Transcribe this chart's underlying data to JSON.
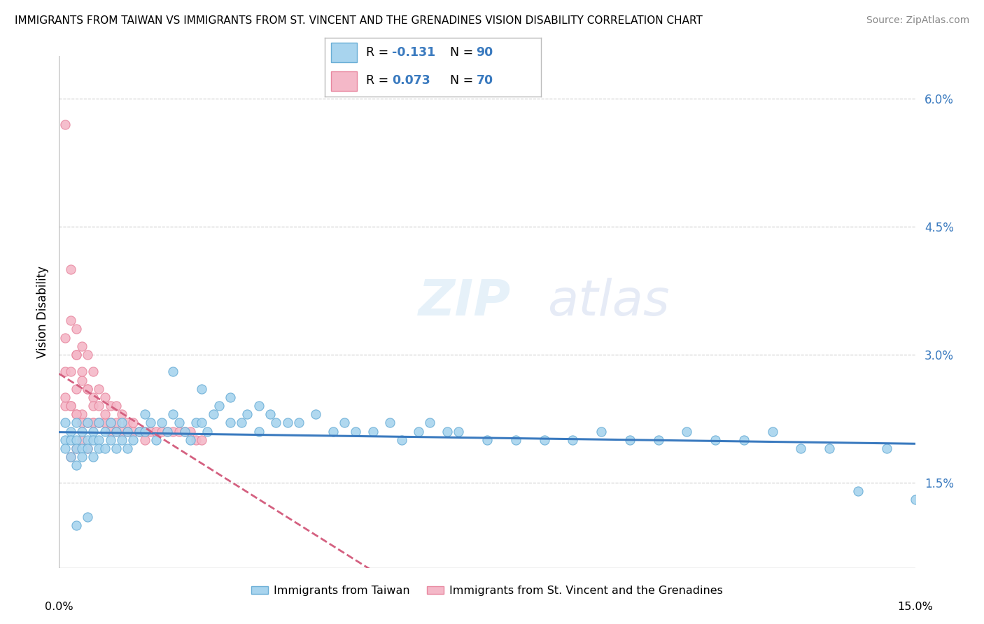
{
  "title": "IMMIGRANTS FROM TAIWAN VS IMMIGRANTS FROM ST. VINCENT AND THE GRENADINES VISION DISABILITY CORRELATION CHART",
  "source": "Source: ZipAtlas.com",
  "ylabel": "Vision Disability",
  "legend_label_taiwan": "Immigrants from Taiwan",
  "legend_label_svg": "Immigrants from St. Vincent and the Grenadines",
  "watermark": "ZIPatlas",
  "taiwan_color": "#a8d4ee",
  "taiwan_edge": "#6aaed6",
  "svg_color": "#f4b8c8",
  "svg_edge": "#e888a0",
  "taiwan_trend_color": "#3a7abf",
  "svg_trend_color": "#d46080",
  "x_min": 0.0,
  "x_max": 0.15,
  "y_min": 0.005,
  "y_max": 0.065,
  "y_ticks": [
    0.015,
    0.03,
    0.045,
    0.06
  ],
  "y_tick_labels": [
    "1.5%",
    "3.0%",
    "4.5%",
    "6.0%"
  ],
  "taiwan_scatter_x": [
    0.001,
    0.001,
    0.001,
    0.002,
    0.002,
    0.002,
    0.003,
    0.003,
    0.003,
    0.003,
    0.004,
    0.004,
    0.004,
    0.005,
    0.005,
    0.005,
    0.006,
    0.006,
    0.006,
    0.007,
    0.007,
    0.007,
    0.008,
    0.008,
    0.009,
    0.009,
    0.01,
    0.01,
    0.011,
    0.011,
    0.012,
    0.012,
    0.013,
    0.014,
    0.015,
    0.015,
    0.016,
    0.017,
    0.018,
    0.019,
    0.02,
    0.021,
    0.022,
    0.023,
    0.024,
    0.025,
    0.026,
    0.027,
    0.028,
    0.03,
    0.032,
    0.033,
    0.035,
    0.037,
    0.038,
    0.04,
    0.042,
    0.045,
    0.048,
    0.05,
    0.052,
    0.055,
    0.058,
    0.06,
    0.063,
    0.065,
    0.068,
    0.07,
    0.075,
    0.08,
    0.085,
    0.09,
    0.095,
    0.1,
    0.105,
    0.11,
    0.115,
    0.12,
    0.125,
    0.13,
    0.135,
    0.14,
    0.145,
    0.15,
    0.02,
    0.025,
    0.03,
    0.035,
    0.003,
    0.005
  ],
  "taiwan_scatter_y": [
    0.022,
    0.02,
    0.019,
    0.021,
    0.02,
    0.018,
    0.022,
    0.02,
    0.019,
    0.017,
    0.021,
    0.019,
    0.018,
    0.022,
    0.02,
    0.019,
    0.021,
    0.02,
    0.018,
    0.022,
    0.02,
    0.019,
    0.021,
    0.019,
    0.022,
    0.02,
    0.021,
    0.019,
    0.022,
    0.02,
    0.021,
    0.019,
    0.02,
    0.021,
    0.023,
    0.021,
    0.022,
    0.02,
    0.022,
    0.021,
    0.023,
    0.022,
    0.021,
    0.02,
    0.022,
    0.022,
    0.021,
    0.023,
    0.024,
    0.022,
    0.022,
    0.023,
    0.021,
    0.023,
    0.022,
    0.022,
    0.022,
    0.023,
    0.021,
    0.022,
    0.021,
    0.021,
    0.022,
    0.02,
    0.021,
    0.022,
    0.021,
    0.021,
    0.02,
    0.02,
    0.02,
    0.02,
    0.021,
    0.02,
    0.02,
    0.021,
    0.02,
    0.02,
    0.021,
    0.019,
    0.019,
    0.014,
    0.019,
    0.013,
    0.028,
    0.026,
    0.025,
    0.024,
    0.01,
    0.011
  ],
  "svg_scatter_x": [
    0.001,
    0.001,
    0.001,
    0.001,
    0.002,
    0.002,
    0.002,
    0.002,
    0.003,
    0.003,
    0.003,
    0.003,
    0.004,
    0.004,
    0.004,
    0.005,
    0.005,
    0.005,
    0.006,
    0.006,
    0.006,
    0.007,
    0.007,
    0.008,
    0.008,
    0.009,
    0.009,
    0.01,
    0.01,
    0.011,
    0.012,
    0.013,
    0.014,
    0.015,
    0.016,
    0.017,
    0.018,
    0.019,
    0.02,
    0.021,
    0.022,
    0.023,
    0.024,
    0.025,
    0.001,
    0.002,
    0.003,
    0.004,
    0.005,
    0.006,
    0.007,
    0.008,
    0.009,
    0.01,
    0.011,
    0.012,
    0.013,
    0.014,
    0.015,
    0.003,
    0.004,
    0.005,
    0.006,
    0.007,
    0.008,
    0.009,
    0.002,
    0.003,
    0.004,
    0.005
  ],
  "svg_scatter_y": [
    0.057,
    0.032,
    0.028,
    0.024,
    0.04,
    0.034,
    0.028,
    0.024,
    0.033,
    0.03,
    0.026,
    0.023,
    0.031,
    0.027,
    0.023,
    0.03,
    0.026,
    0.022,
    0.028,
    0.025,
    0.022,
    0.026,
    0.022,
    0.025,
    0.022,
    0.024,
    0.022,
    0.024,
    0.022,
    0.023,
    0.022,
    0.022,
    0.021,
    0.021,
    0.021,
    0.021,
    0.021,
    0.021,
    0.021,
    0.021,
    0.021,
    0.021,
    0.02,
    0.02,
    0.025,
    0.024,
    0.023,
    0.022,
    0.022,
    0.022,
    0.022,
    0.022,
    0.021,
    0.021,
    0.021,
    0.021,
    0.021,
    0.021,
    0.02,
    0.03,
    0.028,
    0.026,
    0.024,
    0.024,
    0.023,
    0.022,
    0.018,
    0.019,
    0.02,
    0.019
  ]
}
